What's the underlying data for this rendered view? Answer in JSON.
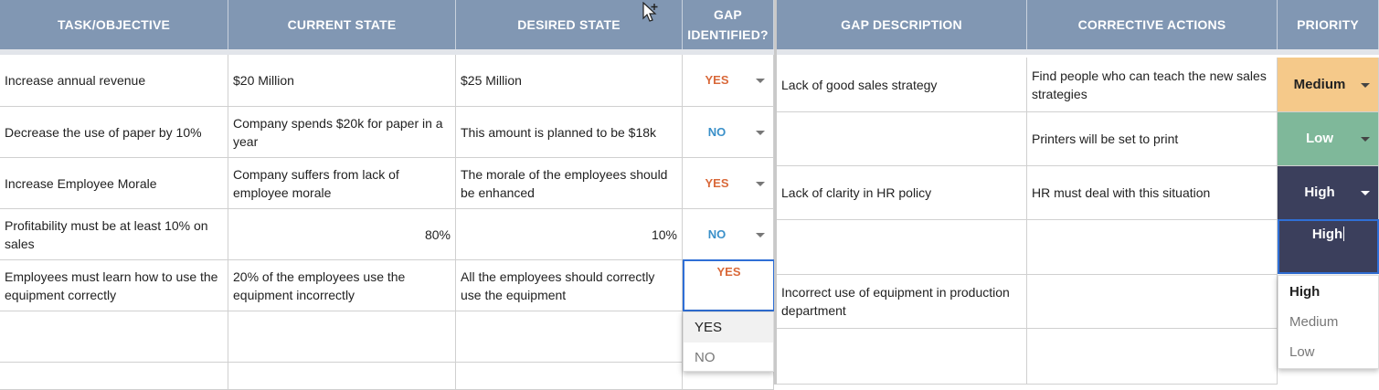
{
  "left_table": {
    "headers": [
      "TASK/OBJECTIVE",
      "CURRENT STATE",
      "DESIRED STATE",
      "GAP\nIDENTIFIED?"
    ],
    "rows": [
      {
        "task": "Increase annual revenue",
        "current": "$20 Million",
        "desired": "$25 Million",
        "gap": "YES"
      },
      {
        "task": "Decrease the use of paper by 10%",
        "current": "Company spends $20k for paper in a year",
        "desired": "This amount is planned to be $18k",
        "gap": "NO"
      },
      {
        "task": "Increase Employee Morale",
        "current": "Company suffers from lack of employee morale",
        "desired": "The morale of the employees should be enhanced",
        "gap": "YES"
      },
      {
        "task": "Profitability must be at least 10% on sales",
        "current": "80%",
        "desired": "10%",
        "gap": "NO"
      },
      {
        "task": "Employees must learn how to use the equipment correctly",
        "current": "20% of the employees use the equipment incorrectly",
        "desired": "All the employees should correctly use the equipment",
        "gap": "YES"
      },
      {
        "task": "",
        "current": "",
        "desired": "",
        "gap": ""
      },
      {
        "task": "",
        "current": "",
        "desired": "",
        "gap": ""
      }
    ],
    "gap_dropdown": {
      "options": [
        "YES",
        "NO"
      ],
      "highlighted": "YES"
    }
  },
  "right_table": {
    "headers": [
      "GAP DESCRIPTION",
      "CORRECTIVE ACTIONS",
      "PRIORITY"
    ],
    "rows": [
      {
        "gap_desc": "Lack of good sales strategy",
        "action": "Find people who can teach the new sales strategies",
        "priority": "Medium"
      },
      {
        "gap_desc": "",
        "action": "Printers will be set to print",
        "priority": "Low"
      },
      {
        "gap_desc": "Lack of clarity in HR policy",
        "action": "HR must deal with this situation",
        "priority": "High"
      },
      {
        "gap_desc": "",
        "action": "",
        "priority": "High"
      },
      {
        "gap_desc": "Incorrect use of equipment in production department",
        "action": "",
        "priority": ""
      },
      {
        "gap_desc": "",
        "action": "",
        "priority": ""
      }
    ],
    "priority_dropdown": {
      "options": [
        "High",
        "Medium",
        "Low"
      ],
      "highlighted": "High"
    }
  },
  "colors": {
    "header_bg": "#8197b3",
    "yes": "#d9693a",
    "no": "#3a90c9",
    "medium": "#f5c98a",
    "low": "#7fb89a",
    "high": "#3b3f5c",
    "editor_border": "#2f6fd6"
  }
}
